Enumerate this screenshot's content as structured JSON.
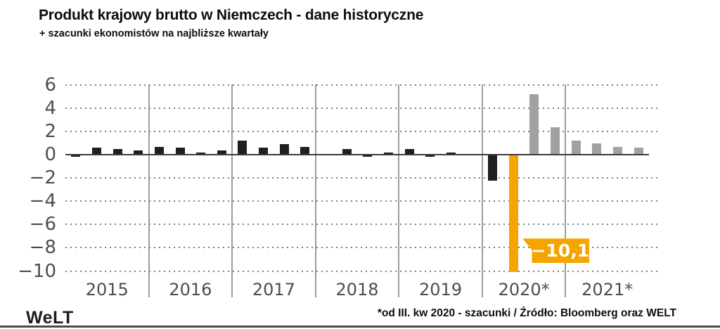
{
  "header": {
    "title": "Produkt krajowy brutto w Niemczech - dane historyczne",
    "subtitle": "+ szacunki ekonomistów na najbliższe kwartały"
  },
  "footer": {
    "logo": "WeLT",
    "source": "*od III. kw 2020 - szacunki / Źródło: Bloomberg oraz WELT"
  },
  "chart_data": {
    "type": "bar",
    "title": "Produkt krajowy brutto w Niemczech - dane historyczne",
    "subtitle": "+ szacunki ekonomistów na najbliższe kwartały",
    "grid": "horizontal-dotted",
    "legend_position": "none",
    "ylim": [
      -10,
      6
    ],
    "ytick_values": [
      6,
      4,
      2,
      0,
      -2,
      -4,
      -6,
      -8,
      -10
    ],
    "ytick_labels": [
      "6",
      "4",
      "2",
      "0",
      "−2",
      "−4",
      "−6",
      "−8",
      "−10"
    ],
    "categories": [
      "2015",
      "2016",
      "2017",
      "2018",
      "2019",
      "2020*",
      "2021*"
    ],
    "years": [
      {
        "label": "2015",
        "values": [
          -0.2,
          0.6,
          0.5,
          0.4
        ],
        "types": [
          "historical",
          "historical",
          "historical",
          "historical"
        ]
      },
      {
        "label": "2016",
        "values": [
          0.7,
          0.6,
          0.2,
          0.4
        ],
        "types": [
          "historical",
          "historical",
          "historical",
          "historical"
        ]
      },
      {
        "label": "2017",
        "values": [
          1.2,
          0.6,
          0.9,
          0.7
        ],
        "types": [
          "historical",
          "historical",
          "historical",
          "historical"
        ]
      },
      {
        "label": "2018",
        "values": [
          0.1,
          0.5,
          -0.2,
          0.2
        ],
        "types": [
          "historical",
          "historical",
          "historical",
          "historical"
        ]
      },
      {
        "label": "2019",
        "values": [
          0.5,
          -0.2,
          0.2,
          0.0
        ],
        "types": [
          "historical",
          "historical",
          "historical",
          "historical"
        ]
      },
      {
        "label": "2020*",
        "values": [
          -2.2,
          -10.1,
          5.2,
          2.4
        ],
        "types": [
          "historical",
          "highlight",
          "forecast",
          "forecast"
        ]
      },
      {
        "label": "2021*",
        "values": [
          1.2,
          1.0,
          0.7,
          0.6
        ],
        "types": [
          "forecast",
          "forecast",
          "forecast",
          "forecast"
        ]
      }
    ],
    "annotation": {
      "text": "−10,1",
      "value": -10.1,
      "attached_to": {
        "year": "2020*",
        "quarter": 2
      }
    },
    "colors": {
      "historical": "#1f1f1f",
      "highlight": "#f6a500",
      "forecast": "#a1a1a1"
    }
  }
}
